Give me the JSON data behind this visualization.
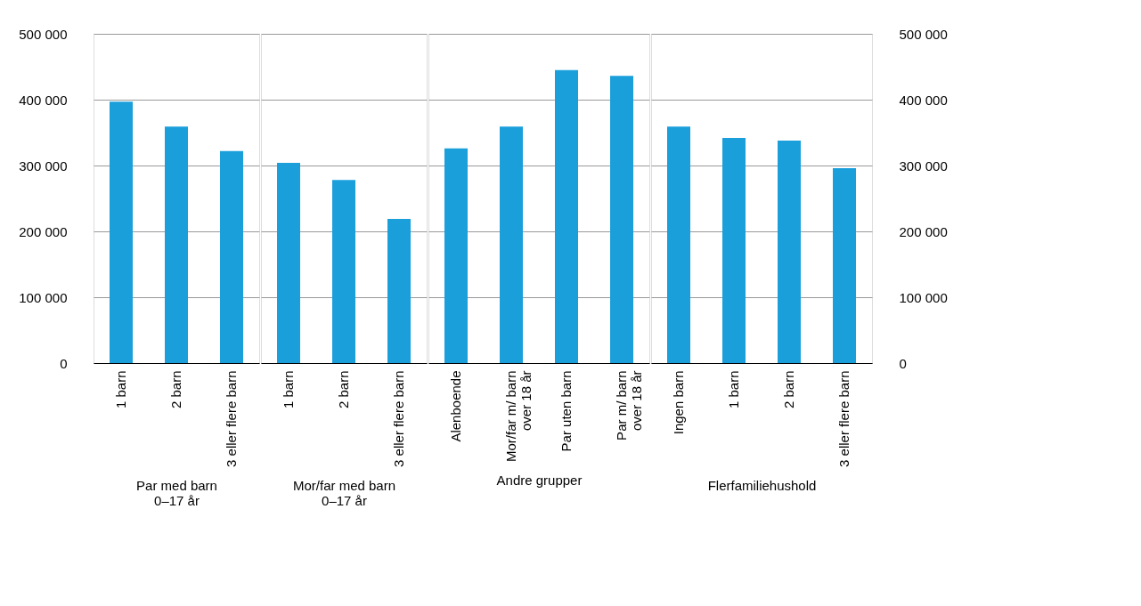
{
  "chart_data": [
    {
      "type": "bar",
      "xlabel": "Par med barn\n0–17 år",
      "categories": [
        "1 barn",
        "2 barn",
        "3 eller flere barn"
      ],
      "values": [
        397000,
        359000,
        322000
      ],
      "color": "#1a9fdb",
      "ylim": [
        0,
        500000
      ],
      "yticks": [
        {
          "value": 0,
          "label": "0"
        },
        {
          "value": 100000,
          "label": "100 000"
        },
        {
          "value": 200000,
          "label": "200 000"
        },
        {
          "value": 300000,
          "label": "300 000"
        },
        {
          "value": 400000,
          "label": "400 000"
        },
        {
          "value": 500000,
          "label": "500 000"
        }
      ],
      "grid": "y"
    },
    {
      "type": "bar",
      "xlabel": "Mor/far med barn\n0–17 år",
      "categories": [
        "1 barn",
        "2 barn",
        "3 eller flere barn"
      ],
      "values": [
        304000,
        278000,
        219000
      ],
      "color": "#1a9fdb",
      "ylim": [
        0,
        500000
      ],
      "yticks": [
        {
          "value": 0,
          "label": null
        },
        {
          "value": 100000,
          "label": null
        },
        {
          "value": 200000,
          "label": null
        },
        {
          "value": 300000,
          "label": null
        },
        {
          "value": 400000,
          "label": null
        },
        {
          "value": 500000,
          "label": null
        }
      ],
      "grid": "y",
      "tick_labels": "x"
    },
    {
      "type": "bar",
      "xlabel": "Andre grupper",
      "categories": [
        "Alenboende",
        "Mor/far m/ barn\nover 18 år",
        "Par uten barn",
        "Par m/ barn\nover 18 år"
      ],
      "values": [
        326000,
        359000,
        445000,
        436000
      ],
      "color": "#1a9fdb",
      "ylim": [
        0,
        500000
      ],
      "yticks": [
        {
          "value": 0,
          "label": null
        },
        {
          "value": 100000,
          "label": null
        },
        {
          "value": 200000,
          "label": null
        },
        {
          "value": 300000,
          "label": null
        },
        {
          "value": 400000,
          "label": null
        },
        {
          "value": 500000,
          "label": null
        }
      ],
      "grid": "y",
      "tick_labels": "x"
    },
    {
      "type": "bar",
      "xlabel": "Flerfamiliehushold",
      "categories": [
        "Ingen barn",
        "1 barn",
        "2 barn",
        "3 eller flere barn"
      ],
      "values": [
        359000,
        342000,
        338000,
        296000
      ],
      "color": "#1a9fdb",
      "ylim": [
        0,
        500000
      ],
      "yticks": [
        {
          "value": 0,
          "label": "0"
        },
        {
          "value": 100000,
          "label": "100 000"
        },
        {
          "value": 200000,
          "label": "200 000"
        },
        {
          "value": 300000,
          "label": "300 000"
        },
        {
          "value": 400000,
          "label": "400 000"
        },
        {
          "value": 500000,
          "label": "500 000"
        }
      ],
      "grid": "y"
    }
  ]
}
